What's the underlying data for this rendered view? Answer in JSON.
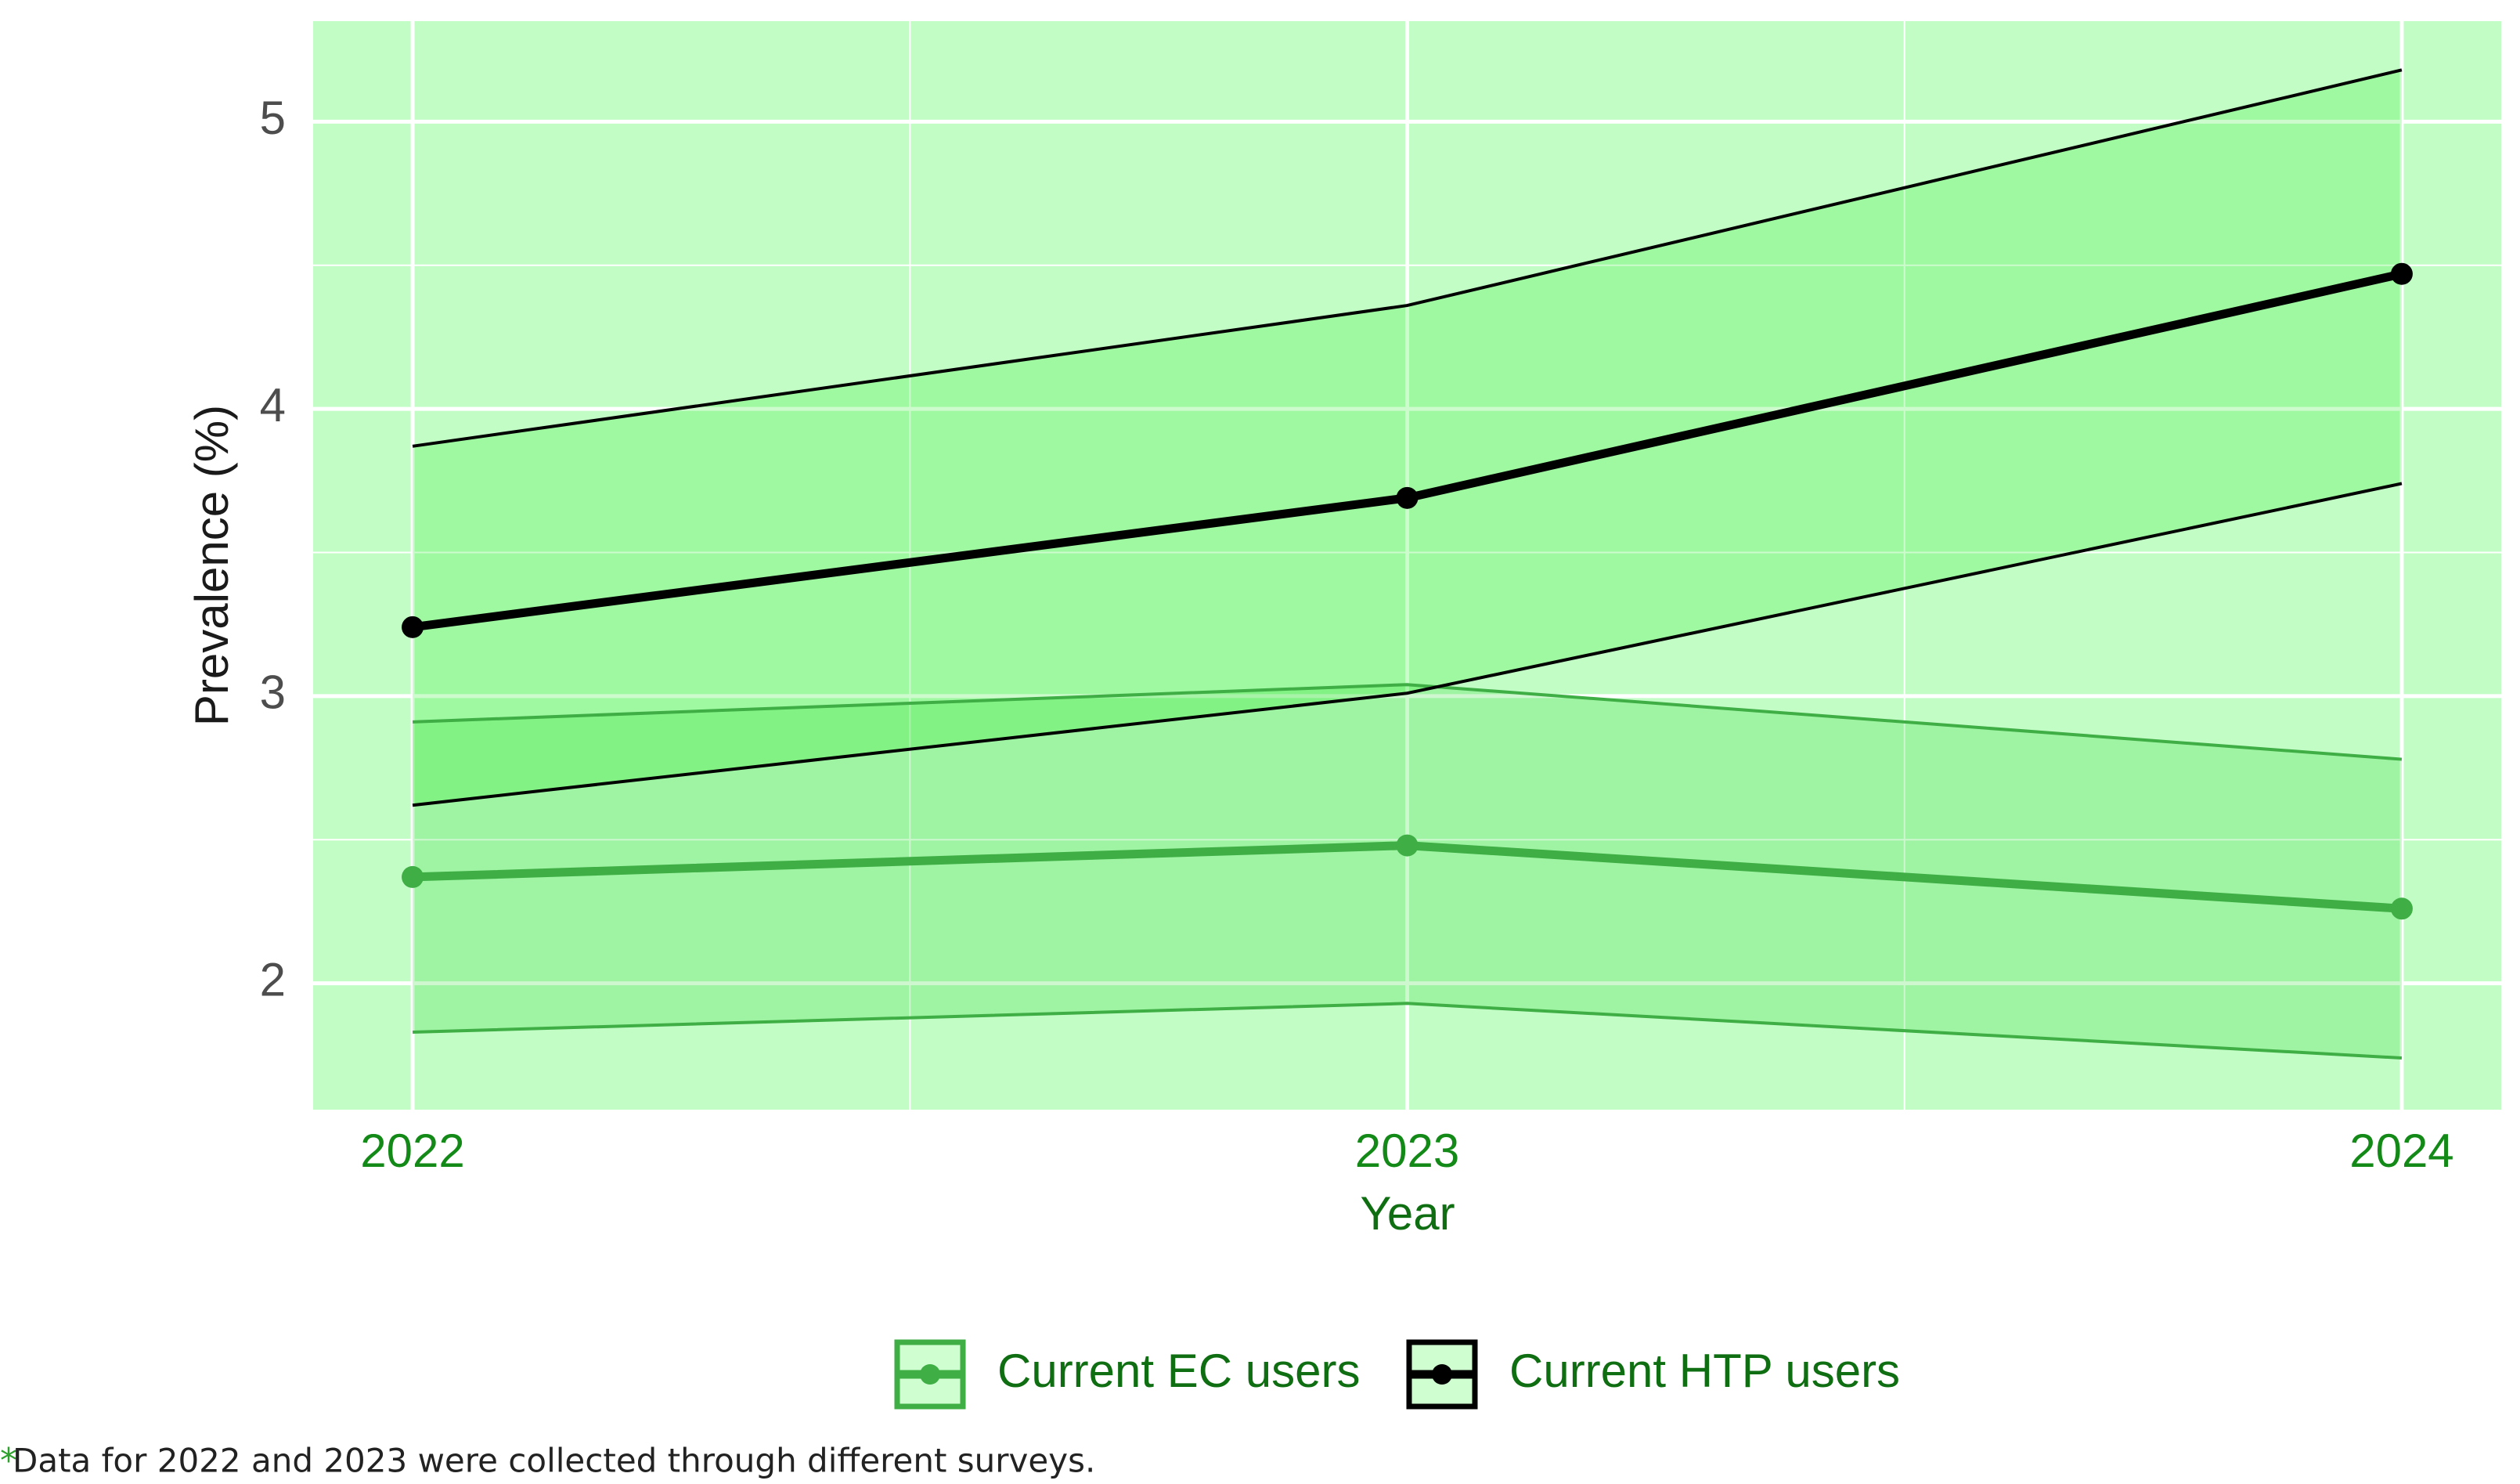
{
  "chart_data": {
    "type": "line",
    "x_label": "Year",
    "y_label": "Prevalence (%)",
    "x": [
      2022,
      2023,
      2024
    ],
    "xlim": [
      2021.9,
      2024.1
    ],
    "xticks": [
      2022,
      2023,
      2024
    ],
    "ylim": [
      1.56,
      5.35
    ],
    "yticks": [
      2,
      3,
      4,
      5
    ],
    "grid": true,
    "background": "#c2fdc6",
    "legend_position": "bottom",
    "series": [
      {
        "name": "Current EC users",
        "color": "#3eae45",
        "band_color": "#1ed423",
        "values": [
          2.37,
          2.48,
          2.26
        ],
        "lower": [
          1.83,
          1.93,
          1.74
        ],
        "upper": [
          2.91,
          3.04,
          2.78
        ]
      },
      {
        "name": "Current HTP users",
        "color": "#000000",
        "band_color": "#22ef22",
        "values": [
          3.24,
          3.69,
          4.47
        ],
        "lower": [
          2.62,
          3.01,
          3.74
        ],
        "upper": [
          3.87,
          4.36,
          5.18
        ]
      }
    ],
    "footnote_marker": "*",
    "footnote": "Data for 2022 and 2023 were collected through different surveys."
  }
}
